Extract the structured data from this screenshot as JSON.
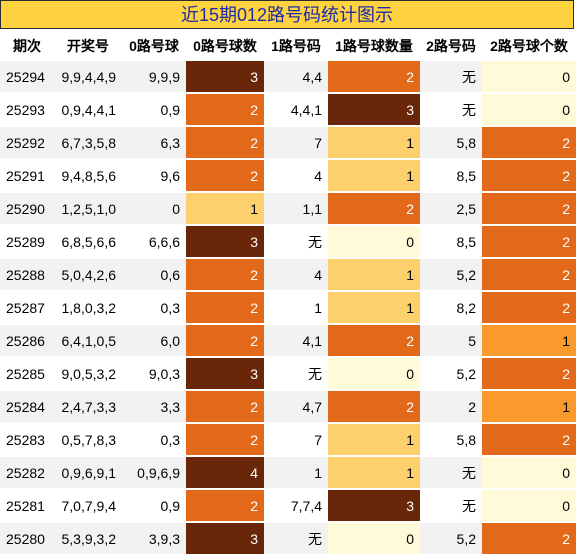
{
  "title": "近15期012路号码统计图示",
  "headers": [
    "期次",
    "开奖号",
    "0路号球",
    "0路号球数",
    "1路号码",
    "1路号球数量",
    "2路号码",
    "2路号球个数"
  ],
  "rows": [
    {
      "period": "25294",
      "draw": "9,9,4,4,9",
      "zero_nums": "9,9,9",
      "zero_count": "3",
      "one_nums": "4,4",
      "one_count": "2",
      "two_nums": "无",
      "two_count": "0"
    },
    {
      "period": "25293",
      "draw": "0,9,4,4,1",
      "zero_nums": "0,9",
      "zero_count": "2",
      "one_nums": "4,4,1",
      "one_count": "3",
      "two_nums": "无",
      "two_count": "0"
    },
    {
      "period": "25292",
      "draw": "6,7,3,5,8",
      "zero_nums": "6,3",
      "zero_count": "2",
      "one_nums": "7",
      "one_count": "1",
      "two_nums": "5,8",
      "two_count": "2"
    },
    {
      "period": "25291",
      "draw": "9,4,8,5,6",
      "zero_nums": "9,6",
      "zero_count": "2",
      "one_nums": "4",
      "one_count": "1",
      "two_nums": "8,5",
      "two_count": "2"
    },
    {
      "period": "25290",
      "draw": "1,2,5,1,0",
      "zero_nums": "0",
      "zero_count": "1",
      "one_nums": "1,1",
      "one_count": "2",
      "two_nums": "2,5",
      "two_count": "2"
    },
    {
      "period": "25289",
      "draw": "6,8,5,6,6",
      "zero_nums": "6,6,6",
      "zero_count": "3",
      "one_nums": "无",
      "one_count": "0",
      "two_nums": "8,5",
      "two_count": "2"
    },
    {
      "period": "25288",
      "draw": "5,0,4,2,6",
      "zero_nums": "0,6",
      "zero_count": "2",
      "one_nums": "4",
      "one_count": "1",
      "two_nums": "5,2",
      "two_count": "2"
    },
    {
      "period": "25287",
      "draw": "1,8,0,3,2",
      "zero_nums": "0,3",
      "zero_count": "2",
      "one_nums": "1",
      "one_count": "1",
      "two_nums": "8,2",
      "two_count": "2"
    },
    {
      "period": "25286",
      "draw": "6,4,1,0,5",
      "zero_nums": "6,0",
      "zero_count": "2",
      "one_nums": "4,1",
      "one_count": "2",
      "two_nums": "5",
      "two_count": "1"
    },
    {
      "period": "25285",
      "draw": "9,0,5,3,2",
      "zero_nums": "9,0,3",
      "zero_count": "3",
      "one_nums": "无",
      "one_count": "0",
      "two_nums": "5,2",
      "two_count": "2"
    },
    {
      "period": "25284",
      "draw": "2,4,7,3,3",
      "zero_nums": "3,3",
      "zero_count": "2",
      "one_nums": "4,7",
      "one_count": "2",
      "two_nums": "2",
      "two_count": "1"
    },
    {
      "period": "25283",
      "draw": "0,5,7,8,3",
      "zero_nums": "0,3",
      "zero_count": "2",
      "one_nums": "7",
      "one_count": "1",
      "two_nums": "5,8",
      "two_count": "2"
    },
    {
      "period": "25282",
      "draw": "0,9,6,9,1",
      "zero_nums": "0,9,6,9",
      "zero_count": "4",
      "one_nums": "1",
      "one_count": "1",
      "two_nums": "无",
      "two_count": "0"
    },
    {
      "period": "25281",
      "draw": "7,0,7,9,4",
      "zero_nums": "0,9",
      "zero_count": "2",
      "one_nums": "7,7,4",
      "one_count": "3",
      "two_nums": "无",
      "two_count": "0"
    },
    {
      "period": "25280",
      "draw": "5,3,9,3,2",
      "zero_nums": "3,9,3",
      "zero_count": "3",
      "one_nums": "无",
      "one_count": "0",
      "two_nums": "5,2",
      "two_count": "2"
    }
  ],
  "colors": {
    "title_bg": "#ffd23f",
    "title_text": "#1c2aa8",
    "count_0": "#fffbd8",
    "count_1": "#fcd06c",
    "count_2": "#e2681a",
    "count_3": "#6a2608",
    "count_4": "#6a2608",
    "two_count_1": "#fb9a2c"
  }
}
